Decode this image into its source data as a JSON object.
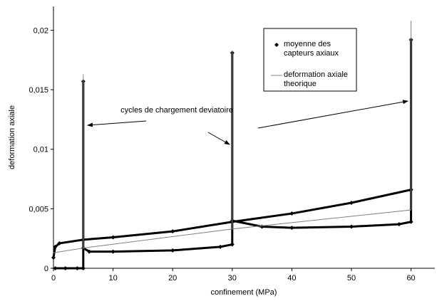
{
  "chart_data": {
    "type": "line",
    "xlabel": "confinement (MPa)",
    "ylabel": "deformation axiale",
    "annotation": "cycles de chargement deviatoire",
    "xlim": [
      0,
      64
    ],
    "xticks": [
      0,
      10,
      20,
      30,
      40,
      50,
      60
    ],
    "ylim": [
      0,
      0.022
    ],
    "yticks": [
      0,
      {
        "value": 0.005,
        "label": "0,005"
      },
      {
        "value": 0.01,
        "label": "0,01"
      },
      {
        "value": 0.015,
        "label": "0,015"
      },
      {
        "value": 0.02,
        "label": "0,02"
      }
    ],
    "series": [
      {
        "name": "moyenne des capteurs axiaux",
        "color": "#000000",
        "marker": "diamond",
        "x": [
          0.3,
          2,
          4,
          5,
          5,
          5,
          6,
          10,
          20,
          28,
          30,
          30,
          30,
          35,
          40,
          50,
          58,
          60,
          60,
          60,
          null,
          0,
          0.3,
          1,
          5,
          10,
          20,
          30,
          40,
          50,
          60
        ],
        "values": [
          0,
          0,
          0,
          0,
          0.0157,
          0.0017,
          0.0014,
          0.0014,
          0.0015,
          0.0018,
          0.002,
          0.0181,
          0.004,
          0.0035,
          0.0034,
          0.0035,
          0.0037,
          0.0039,
          0.0192,
          0.0066,
          null,
          0.0009,
          0.0018,
          0.0021,
          0.0024,
          0.0026,
          0.0031,
          0.0039,
          0.0046,
          0.0055,
          0.0066
        ]
      },
      {
        "name": "deformation axiale theorique",
        "color": "#808080",
        "marker": "none",
        "x": [
          0,
          5,
          5,
          5,
          30,
          30,
          30,
          60,
          60,
          60
        ],
        "values": [
          0.0013,
          0.0017,
          0.0163,
          0.0017,
          0.0033,
          0.0183,
          0.0033,
          0.0049,
          0.0208,
          0.0049
        ]
      }
    ]
  }
}
